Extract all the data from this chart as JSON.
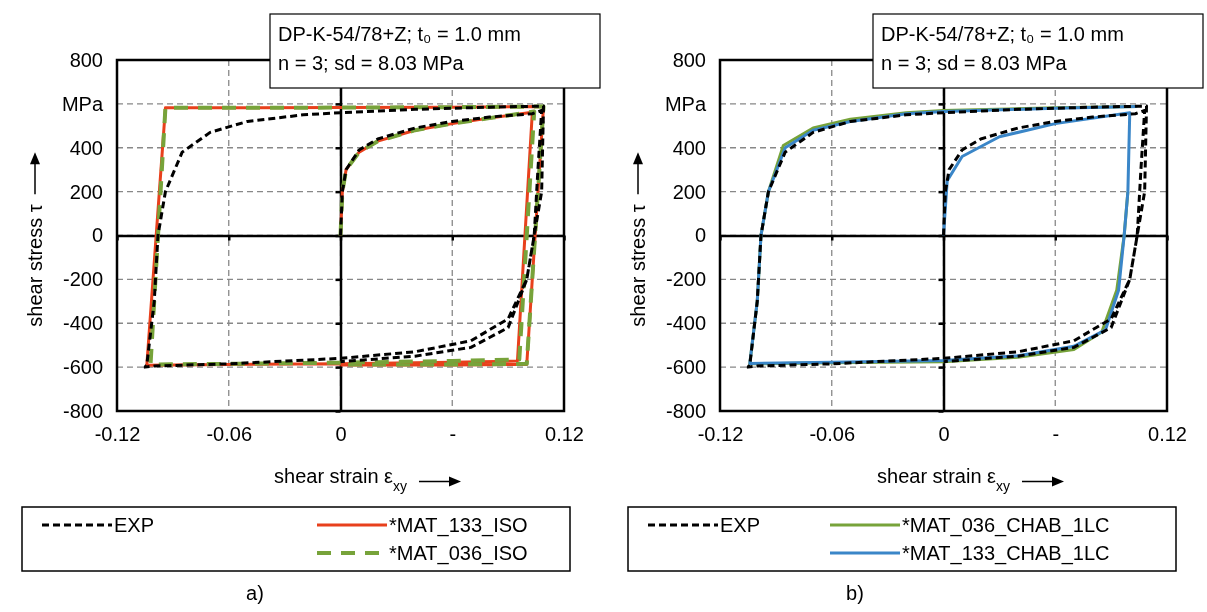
{
  "chart_data": [
    {
      "type": "line",
      "xlabel": "shear strain ε$_{xy}$",
      "ylabel": "shear stress τ",
      "annotations": [
        "DP-K-54/78+Z; t₀ = 1.0 mm",
        "n = 3; sd = 8.03 MPa",
        "a)"
      ],
      "xlim": [
        -0.12,
        0.12
      ],
      "xticks": [
        -0.12,
        -0.06,
        0,
        {
          "value": 0.06,
          "label": "-"
        },
        0.12
      ],
      "ylim": [
        -800,
        800
      ],
      "yticks": [
        -800,
        -600,
        -400,
        -200,
        0,
        200,
        400,
        {
          "value": 600,
          "label": "MPa"
        },
        800
      ],
      "grid": true,
      "legend": "bottom",
      "series": [
        {
          "name": "EXP",
          "color": "#000000",
          "line_style": "dashed",
          "x": [
            0,
            0.001,
            0.003,
            0.01,
            0.02,
            0.04,
            0.06,
            0.08,
            0.103,
            0.108,
            0.106,
            0.104,
            0.1,
            0.09,
            0.07,
            0.04,
            0,
            -0.06,
            -0.1,
            -0.105,
            -0.104,
            -0.1,
            -0.098,
            -0.094,
            -0.085,
            -0.07,
            -0.05,
            -0.02,
            0,
            0.04,
            0.08,
            0.109,
            0.108,
            0.104,
            0.1,
            0.09,
            0.07,
            0.04,
            0
          ],
          "values": [
            0,
            200,
            300,
            390,
            440,
            490,
            520,
            540,
            555,
            570,
            300,
            0,
            -200,
            -380,
            -480,
            -530,
            -560,
            -585,
            -595,
            -600,
            -590,
            -300,
            0,
            200,
            380,
            470,
            520,
            550,
            560,
            575,
            585,
            590,
            200,
            0,
            -200,
            -420,
            -510,
            -550,
            -575
          ]
        },
        {
          "name": "*MAT_133_ISO",
          "color": "#e8401c",
          "line_style": "solid",
          "x": [
            0,
            0.001,
            0.003,
            0.01,
            0.02,
            0.04,
            0.06,
            0.08,
            0.103,
            0.095,
            0.06,
            0,
            -0.06,
            -0.104,
            -0.094,
            -0.06,
            0,
            0.06,
            0.109,
            0.1,
            0.06,
            0
          ],
          "values": [
            0,
            200,
            300,
            380,
            430,
            480,
            510,
            535,
            562,
            -572,
            -578,
            -585,
            -588,
            -592,
            582,
            582,
            583,
            585,
            588,
            -588,
            -590,
            -590
          ]
        },
        {
          "name": "*MAT_036_ISO",
          "color": "#77a33a",
          "line_style": "dashed",
          "x": [
            0,
            0.001,
            0.003,
            0.01,
            0.02,
            0.04,
            0.06,
            0.08,
            0.104,
            0.096,
            0.06,
            0,
            -0.06,
            -0.102,
            -0.094,
            -0.06,
            0,
            0.06,
            0.109,
            0.1,
            0.06,
            0
          ],
          "values": [
            0,
            200,
            300,
            380,
            430,
            480,
            510,
            535,
            565,
            -565,
            -572,
            -580,
            -585,
            -588,
            582,
            582,
            583,
            585,
            588,
            -585,
            -588,
            -588
          ]
        }
      ]
    },
    {
      "type": "line",
      "xlabel": "shear strain ε$_{xy}$",
      "ylabel": "shear stress τ",
      "annotations": [
        "DP-K-54/78+Z; t₀ = 1.0 mm",
        "n = 3; sd = 8.03 MPa",
        "b)"
      ],
      "xlim": [
        -0.12,
        0.12
      ],
      "xticks": [
        -0.12,
        -0.06,
        0,
        {
          "value": 0.06,
          "label": "-"
        },
        0.12
      ],
      "ylim": [
        -800,
        800
      ],
      "yticks": [
        -800,
        -600,
        -400,
        -200,
        0,
        200,
        400,
        {
          "value": 600,
          "label": "MPa"
        },
        800
      ],
      "grid": true,
      "legend": "bottom",
      "series": [
        {
          "name": "EXP",
          "color": "#000000",
          "line_style": "dashed",
          "x": [
            0,
            0.001,
            0.003,
            0.01,
            0.02,
            0.04,
            0.06,
            0.08,
            0.103,
            0.108,
            0.106,
            0.104,
            0.1,
            0.09,
            0.07,
            0.04,
            0,
            -0.06,
            -0.1,
            -0.105,
            -0.104,
            -0.1,
            -0.098,
            -0.094,
            -0.085,
            -0.07,
            -0.05,
            -0.02,
            0,
            0.04,
            0.08,
            0.109,
            0.108,
            0.104,
            0.1,
            0.09,
            0.07,
            0.04,
            0
          ],
          "values": [
            0,
            200,
            300,
            390,
            440,
            490,
            520,
            540,
            555,
            570,
            300,
            0,
            -200,
            -380,
            -480,
            -530,
            -560,
            -585,
            -595,
            -600,
            -590,
            -300,
            0,
            200,
            380,
            470,
            520,
            550,
            560,
            575,
            585,
            590,
            200,
            0,
            -200,
            -420,
            -510,
            -550,
            -575
          ]
        },
        {
          "name": "*MAT_036_CHAB_1LC",
          "color": "#77a33a",
          "line_style": "solid",
          "x": [
            0.099,
            0.097,
            0.093,
            0.085,
            0.07,
            0.04,
            0,
            -0.06,
            -0.104,
            -0.1,
            -0.098,
            -0.094,
            -0.086,
            -0.07,
            -0.05,
            -0.02,
            0,
            0.06,
            0.104
          ],
          "values": [
            200,
            0,
            -250,
            -440,
            -520,
            -555,
            -575,
            -580,
            -585,
            -300,
            0,
            200,
            410,
            490,
            530,
            560,
            570,
            582,
            588
          ]
        },
        {
          "name": "*MAT_133_CHAB_1LC",
          "color": "#3a86c8",
          "line_style": "solid",
          "x": [
            0,
            0.002,
            0.01,
            0.03,
            0.06,
            0.1,
            0.099,
            0.097,
            0.094,
            0.087,
            0.07,
            0.04,
            0,
            -0.06,
            -0.104,
            -0.1,
            -0.098,
            -0.094,
            -0.085,
            -0.07,
            -0.05,
            -0.02,
            0,
            0.06,
            0.104
          ],
          "values": [
            0,
            250,
            360,
            450,
            510,
            560,
            200,
            0,
            -250,
            -430,
            -505,
            -548,
            -570,
            -578,
            -583,
            -300,
            0,
            200,
            400,
            480,
            520,
            555,
            565,
            580,
            588
          ]
        }
      ]
    }
  ]
}
